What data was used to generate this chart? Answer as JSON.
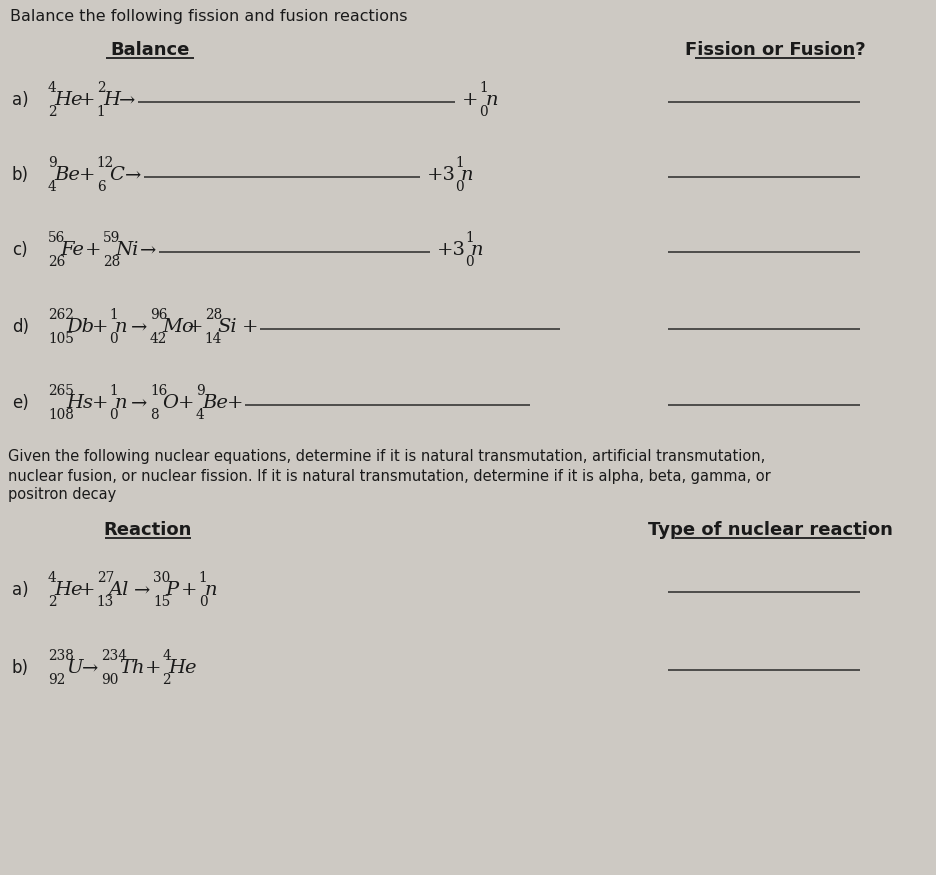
{
  "bg_color": "#cdc9c3",
  "font_color": "#1a1a1a",
  "line_color": "#2a2a2a",
  "title": "Balance the following fission and fusion reactions",
  "col1_header": "Balance",
  "col2_header": "Fission or Fusion?",
  "para_lines": [
    "Given the following nuclear equations, determine if it is natural transmutation, artificial transmutation,",
    "nuclear fusion, or nuclear fission. If it is natural transmutation, determine if it is alpha, beta, gamma, or",
    "positron decay"
  ],
  "col3_header": "Reaction",
  "col4_header": "Type of nuclear reaction"
}
